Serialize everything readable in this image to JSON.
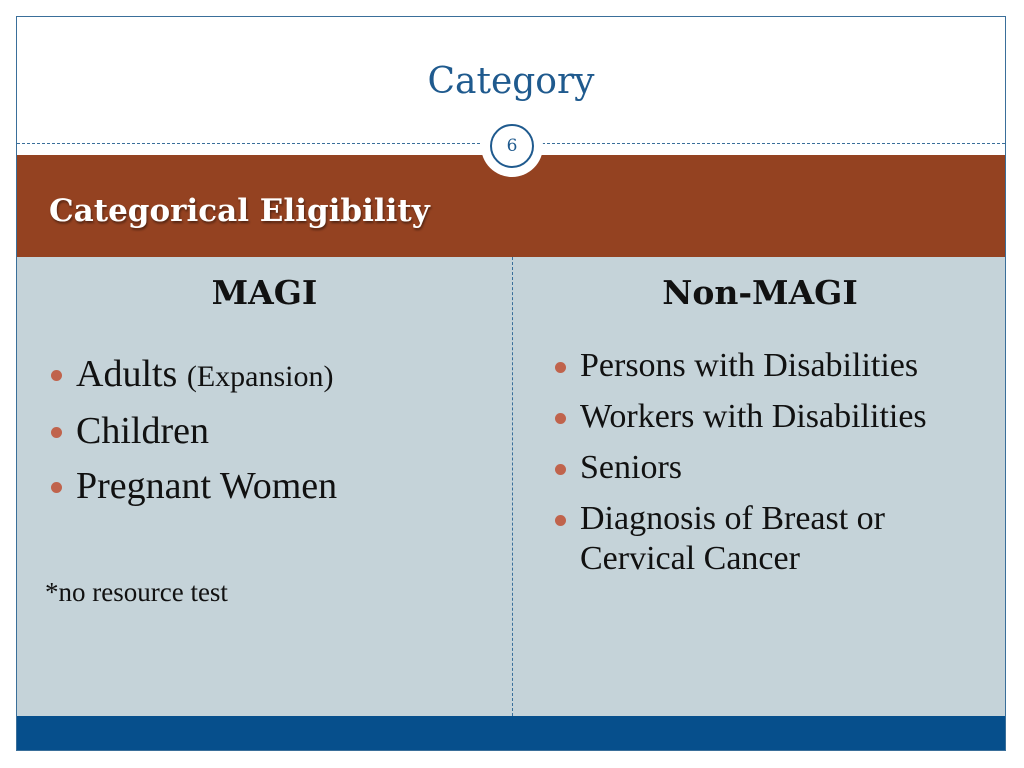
{
  "slide": {
    "title": "Category",
    "slide_number": "6",
    "section_title": "Categorical Eligibility"
  },
  "left_column": {
    "heading": "MAGI",
    "items": [
      {
        "text": "Adults",
        "note": "(Expansion)"
      },
      {
        "text": "Children"
      },
      {
        "text": "Pregnant Women"
      }
    ],
    "footnote": "*no resource test"
  },
  "right_column": {
    "heading": "Non-MAGI",
    "items": [
      {
        "text": "Persons with Disabilities"
      },
      {
        "text": "Workers with Disabilities"
      },
      {
        "text": "Seniors"
      },
      {
        "text": "Diagnosis of Breast or Cervical Cancer"
      }
    ]
  },
  "colors": {
    "title_blue": "#1f5a8e",
    "band_brown": "#944221",
    "content_bg": "#c5d3d9",
    "bullet": "#c0634c",
    "footer_blue": "#064f8c"
  }
}
